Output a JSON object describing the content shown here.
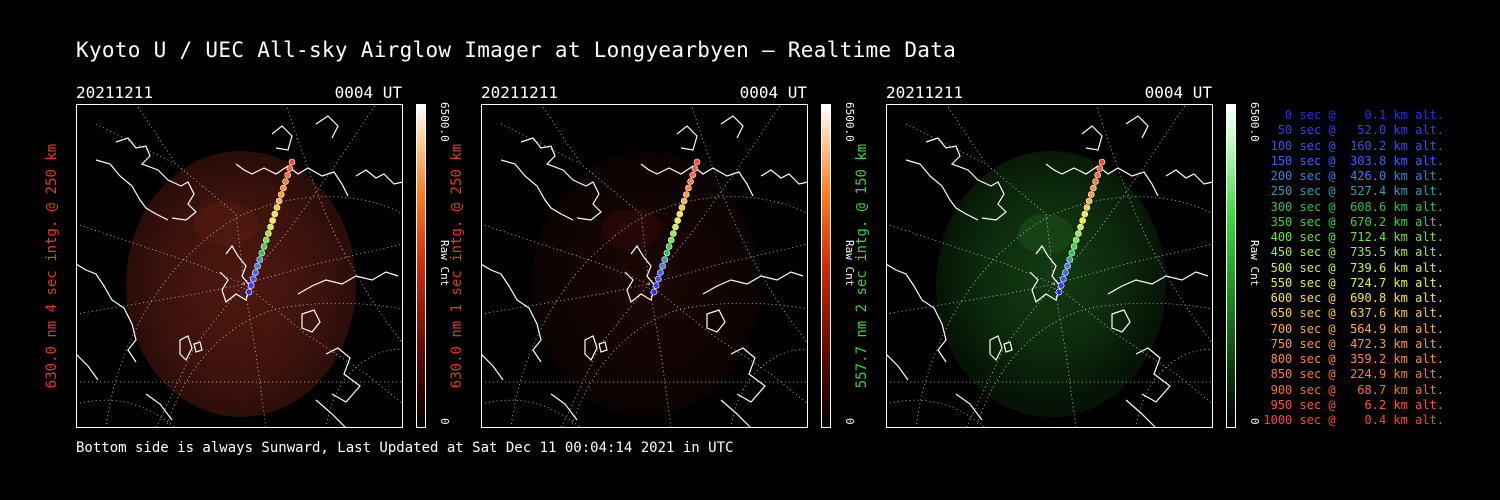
{
  "title": "Kyoto U / UEC All-sky Airglow Imager at Longyearbyen — Realtime Data",
  "footer": "Bottom side is always Sunward, Last Updated at Sat Dec 11 00:04:14 2021 in UTC",
  "panels": [
    {
      "date": "20211211",
      "time": "0004 UT",
      "label": "630.0 nm 4 sec intg. @ 250 km",
      "label_color": "#e03a2a",
      "cbar_max": "6500.0",
      "cbar_min": "0",
      "cbar_unit": "Raw Cnt"
    },
    {
      "date": "20211211",
      "time": "0004 UT",
      "label": "630.0 nm 1 sec intg. @ 250 km",
      "label_color": "#e03a2a",
      "cbar_max": "6500.0",
      "cbar_min": "0",
      "cbar_unit": "Raw Cnt"
    },
    {
      "date": "20211211",
      "time": "0004 UT",
      "label": "557.7 nm 2 sec intg. @ 150 km",
      "label_color": "#3fd13f",
      "cbar_max": "6500.0",
      "cbar_min": "0",
      "cbar_unit": "Raw Cnt"
    }
  ],
  "legend": [
    {
      "text": "   0 sec @    0.1 km alt.",
      "color": "#2a2aff"
    },
    {
      "text": "  50 sec @   52.0 km alt.",
      "color": "#3a3aff"
    },
    {
      "text": " 100 sec @  160.2 km alt.",
      "color": "#3b4fff"
    },
    {
      "text": " 150 sec @  303.8 km alt.",
      "color": "#3a63ff"
    },
    {
      "text": " 200 sec @  426.0 km alt.",
      "color": "#3a7ff0"
    },
    {
      "text": " 250 sec @  527.4 km alt.",
      "color": "#2aa0b8"
    },
    {
      "text": " 300 sec @  608.6 km alt.",
      "color": "#2ac060"
    },
    {
      "text": " 350 sec @  670.2 km alt.",
      "color": "#3ad83a"
    },
    {
      "text": " 400 sec @  712.4 km alt.",
      "color": "#6ee63a"
    },
    {
      "text": " 450 sec @  735.5 km alt.",
      "color": "#a0ee3a"
    },
    {
      "text": " 500 sec @  739.6 km alt.",
      "color": "#ccf23a"
    },
    {
      "text": " 550 sec @  724.7 km alt.",
      "color": "#eef23a"
    },
    {
      "text": " 600 sec @  690.8 km alt.",
      "color": "#ffe23a"
    },
    {
      "text": " 650 sec @  637.6 km alt.",
      "color": "#ffc83a"
    },
    {
      "text": " 700 sec @  564.9 km alt.",
      "color": "#ffb03a"
    },
    {
      "text": " 750 sec @  472.3 km alt.",
      "color": "#ff9a3a"
    },
    {
      "text": " 800 sec @  359.2 km alt.",
      "color": "#ff8a3a"
    },
    {
      "text": " 850 sec @  224.9 km alt.",
      "color": "#ff7a3a"
    },
    {
      "text": " 900 sec @   68.7 km alt.",
      "color": "#ff6a3a"
    },
    {
      "text": " 950 sec @    6.2 km alt.",
      "color": "#ff563a"
    },
    {
      "text": "1000 sec @    0.4 km alt.",
      "color": "#ff453a"
    }
  ]
}
